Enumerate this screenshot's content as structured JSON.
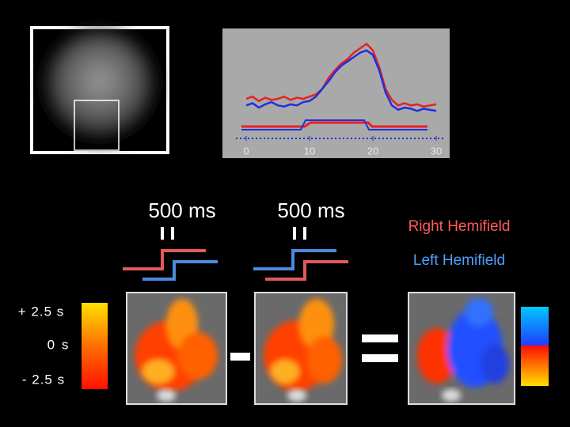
{
  "plot": {
    "type": "line",
    "x": [
      0,
      1,
      2,
      3,
      4,
      5,
      6,
      7,
      8,
      9,
      10,
      11,
      12,
      13,
      14,
      15,
      16,
      17,
      18,
      19,
      20,
      21,
      22,
      23,
      24,
      25,
      26,
      27,
      28,
      29,
      30
    ],
    "xlim": [
      -3.75,
      32.125
    ],
    "ylim": [
      0,
      1
    ],
    "xticks": [
      0,
      10,
      20,
      30
    ],
    "series": [
      {
        "color": "#e82020",
        "values": [
          0.36,
          0.38,
          0.34,
          0.37,
          0.35,
          0.36,
          0.38,
          0.35,
          0.37,
          0.36,
          0.38,
          0.4,
          0.45,
          0.55,
          0.62,
          0.68,
          0.72,
          0.78,
          0.82,
          0.86,
          0.8,
          0.65,
          0.45,
          0.35,
          0.3,
          0.32,
          0.3,
          0.31,
          0.29,
          0.3,
          0.31
        ]
      },
      {
        "color": "#2030e0",
        "values": [
          0.3,
          0.32,
          0.28,
          0.31,
          0.33,
          0.3,
          0.29,
          0.31,
          0.3,
          0.33,
          0.34,
          0.38,
          0.45,
          0.52,
          0.6,
          0.66,
          0.7,
          0.74,
          0.78,
          0.8,
          0.76,
          0.62,
          0.42,
          0.3,
          0.26,
          0.28,
          0.27,
          0.25,
          0.27,
          0.26,
          0.25
        ]
      }
    ]
  },
  "stimuli": [
    {
      "label": "500 ms"
    },
    {
      "label": "500 ms"
    }
  ],
  "legend": [
    {
      "label": "Right Hemifield",
      "color": "#ff5a5a"
    },
    {
      "label": "Left Hemifield",
      "color": "#4fa0ff"
    }
  ],
  "color_scale": {
    "labels": [
      "+ 2.5 s",
      "0 s",
      "- 2.5 s"
    ]
  }
}
